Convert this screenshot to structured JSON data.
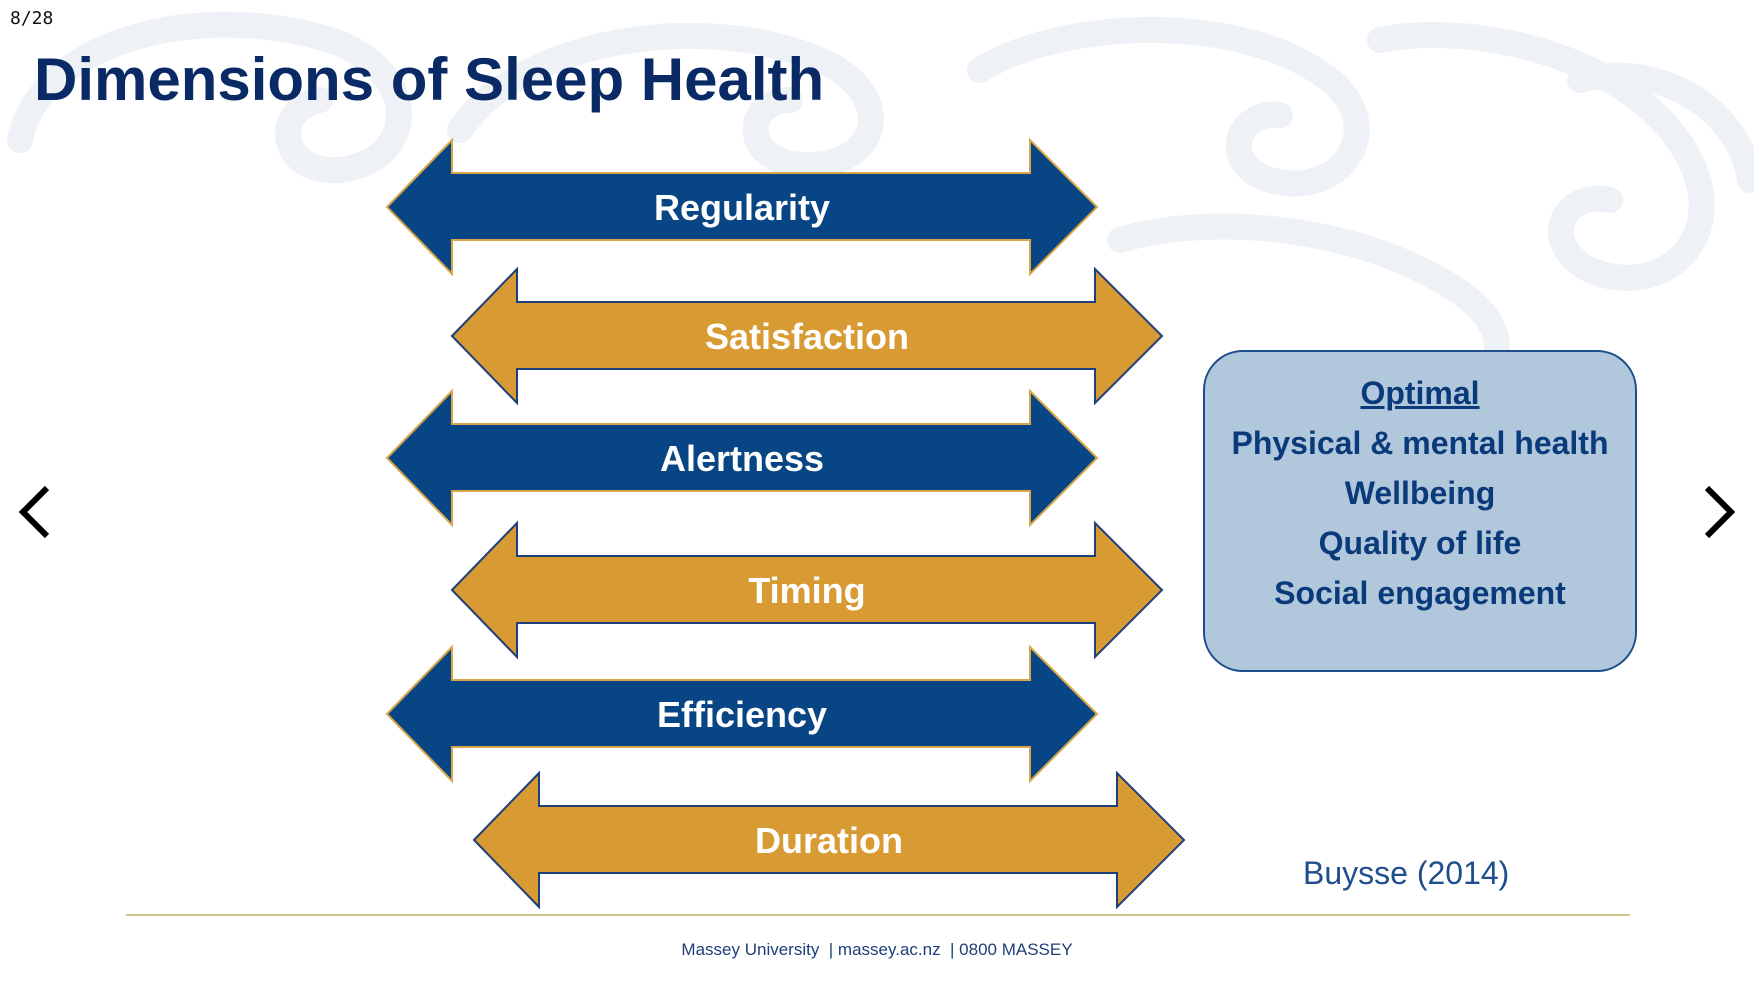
{
  "viewer": {
    "page_indicator": "8/28",
    "prev_icon": "chevron-left-icon",
    "next_icon": "chevron-right-icon"
  },
  "slide": {
    "title": "Dimensions of Sleep Health",
    "dimensions": [
      {
        "label": "Regularity",
        "color": "#084584"
      },
      {
        "label": "Satisfaction",
        "color": "#d89a32"
      },
      {
        "label": "Alertness",
        "color": "#084584"
      },
      {
        "label": "Timing",
        "color": "#d89a32"
      },
      {
        "label": "Efficiency",
        "color": "#084584"
      },
      {
        "label": "Duration",
        "color": "#d89a32"
      }
    ],
    "outcomes": {
      "heading": "Optimal",
      "items": [
        "Physical & mental health",
        "Wellbeing",
        "Quality of life",
        "Social engagement"
      ]
    },
    "citation": "Buysse (2014)",
    "footer": "Massey University  | massey.ac.nz  | 0800 MASSEY"
  },
  "colors": {
    "navy": "#084584",
    "gold": "#d89a32",
    "title": "#0a2a66",
    "box_fill": "#b1c8dc",
    "watermark": "#eef1f6"
  }
}
